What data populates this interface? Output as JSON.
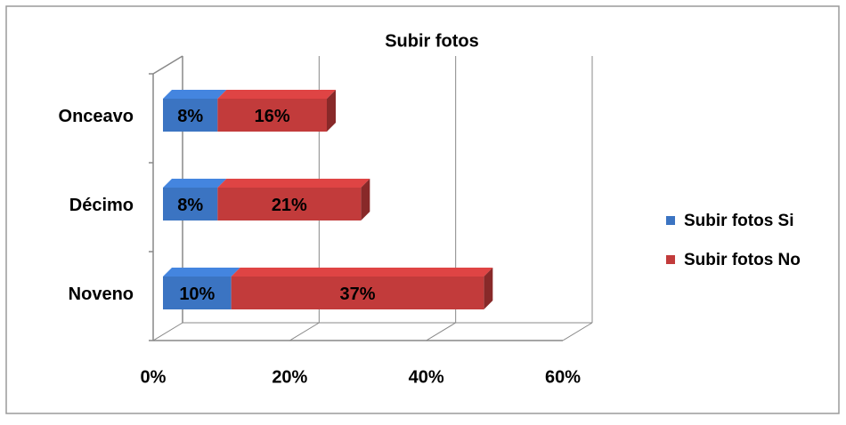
{
  "chart_data": {
    "type": "bar",
    "orientation": "horizontal",
    "stacked": true,
    "three_d": true,
    "title": "Subir fotos",
    "categories": [
      "Onceavo",
      "Décimo",
      "Noveno"
    ],
    "series": [
      {
        "name": "Subir fotos Si",
        "color": "#3b74c2",
        "values": [
          8,
          8,
          10
        ],
        "value_labels": [
          "8%",
          "8%",
          "10%"
        ]
      },
      {
        "name": "Subir fotos No",
        "color": "#c23b3b",
        "values": [
          16,
          21,
          37
        ],
        "value_labels": [
          "16%",
          "21%",
          "37%"
        ]
      }
    ],
    "xlim": [
      0,
      60
    ],
    "xticks": [
      {
        "value": 0,
        "label": "0%"
      },
      {
        "value": 20,
        "label": "20%"
      },
      {
        "value": 40,
        "label": "40%"
      },
      {
        "value": 60,
        "label": "60%"
      }
    ],
    "grid": true,
    "legend": "right"
  }
}
